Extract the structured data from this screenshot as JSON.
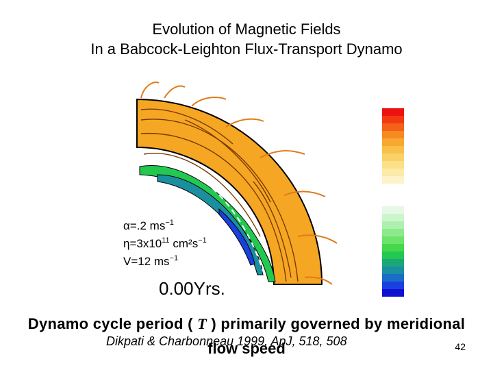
{
  "slide": {
    "title_line1": "Evolution of Magnetic Fields",
    "title_line2": "In a Babcock-Leighton Flux-Transport Dynamo",
    "caption_part1": "Dynamo cycle period ( ",
    "caption_tau": "T",
    "caption_part2": " ) primarily governed by meridional",
    "caption_line2": "flow speed",
    "citation": "Dikpati & Charbonneau 1999, ApJ, 518, 508",
    "page_number": "42"
  },
  "figure": {
    "alpha_text": "α=.2  ms",
    "alpha_exp": "−1",
    "eta_text": "η=3x10",
    "eta_exp1": "11",
    "eta_units": " cm²s",
    "eta_exp2": "−1",
    "v_text": "V=12  ms",
    "v_exp": "−1",
    "time_text": "0.00Yrs."
  },
  "colors": {
    "field_orange": "#f5a623",
    "contour_dark": "#7a3b00",
    "line_orange": "#e07b1a",
    "colorbar": [
      "#ee1111",
      "#f23a12",
      "#f5601a",
      "#f68a20",
      "#f8a830",
      "#f8c048",
      "#fad068",
      "#fbe088",
      "#fceaa8",
      "#fdf3c8",
      "#ffffff",
      "#e6f9e6",
      "#cdf5cd",
      "#aef0ae",
      "#8cea8c",
      "#6ce46c",
      "#45d84a",
      "#22c850",
      "#1aa878",
      "#1a8fa0",
      "#1a6cc8",
      "#1a40e0",
      "#1010d0"
    ]
  }
}
